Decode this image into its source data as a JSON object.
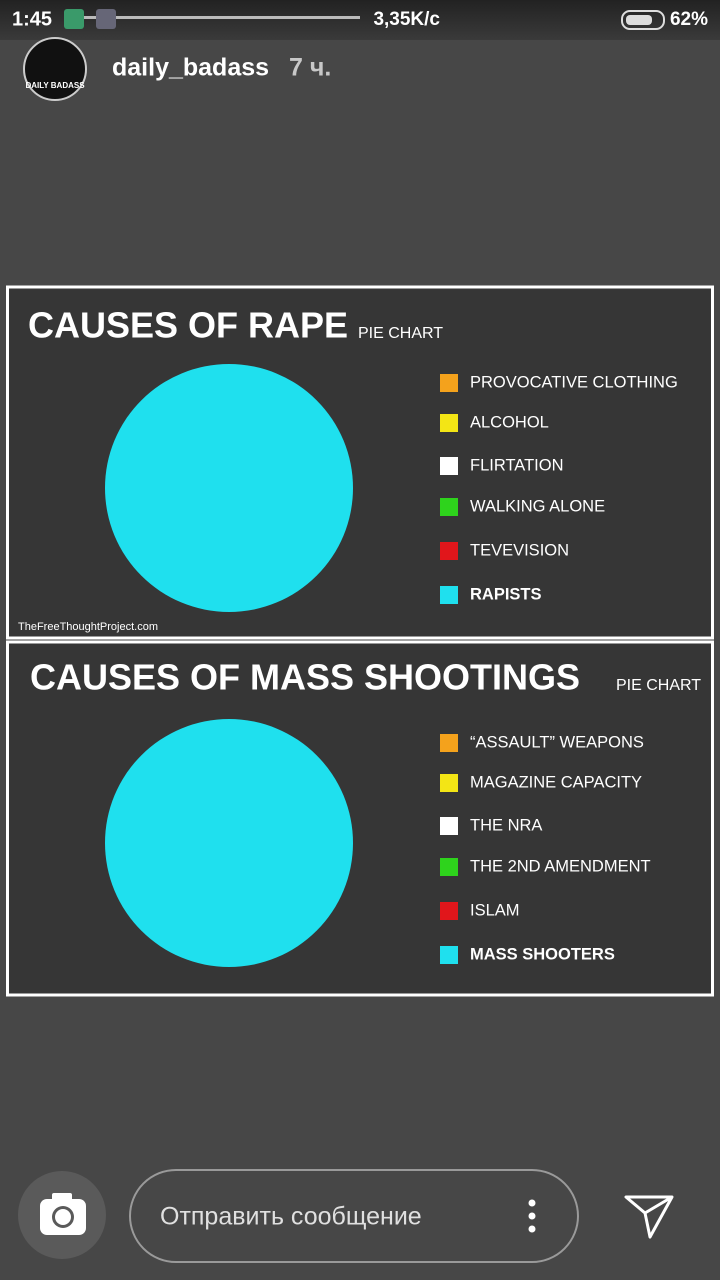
{
  "status_bar": {
    "time": "1:45",
    "speed": "3,35K/c",
    "battery": "62%"
  },
  "header": {
    "avatar_text": "DAILY BADASS",
    "username": "daily_badass",
    "age": "7 ч."
  },
  "chart_data": [
    {
      "type": "pie",
      "title": "CAUSES OF RAPE",
      "subtitle": "PIE CHART",
      "categories": [
        "PROVOCATIVE CLOTHING",
        "ALCOHOL",
        "FLIRTATION",
        "WALKING ALONE",
        "TEVEVISION",
        "RAPISTS"
      ],
      "values": [
        0,
        0,
        0,
        0,
        0,
        100
      ],
      "colors": [
        "#f4a21c",
        "#f3e515",
        "#ffffff",
        "#2ed31c",
        "#e1161b",
        "#1fe0ee"
      ],
      "source": "TheFreeThoughtProject.com"
    },
    {
      "type": "pie",
      "title": "CAUSES OF MASS SHOOTINGS",
      "subtitle": "PIE CHART",
      "categories": [
        "“ASSAULT” WEAPONS",
        "MAGAZINE CAPACITY",
        "THE NRA",
        "THE 2ND AMENDMENT",
        "ISLAM",
        "MASS SHOOTERS"
      ],
      "values": [
        0,
        0,
        0,
        0,
        0,
        100
      ],
      "colors": [
        "#f4a21c",
        "#f3e515",
        "#ffffff",
        "#2ed31c",
        "#e1161b",
        "#1fe0ee"
      ]
    }
  ],
  "footer": {
    "placeholder": "Отправить сообщение"
  }
}
